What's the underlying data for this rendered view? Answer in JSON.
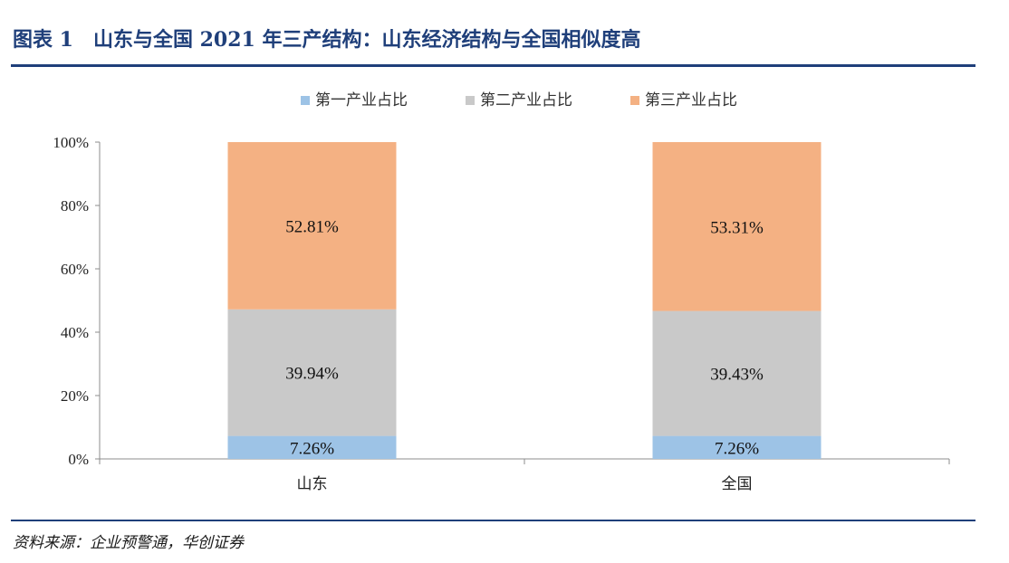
{
  "header": {
    "title": "图表 1　山东与全国 2021 年三产结构：山东经济结构与全国相似度高"
  },
  "footer": {
    "source": "资料来源：企业预警通，华创证券"
  },
  "chart_data": {
    "type": "bar",
    "stacked": true,
    "categories": [
      "山东",
      "全国"
    ],
    "series": [
      {
        "name": "第一产业占比",
        "values": [
          7.26,
          7.26
        ],
        "labels": [
          "7.26%",
          "7.26%"
        ],
        "color": "#9dc3e6"
      },
      {
        "name": "第二产业占比",
        "values": [
          39.94,
          39.43
        ],
        "labels": [
          "39.94%",
          "39.43%"
        ],
        "color": "#c9c9c9"
      },
      {
        "name": "第三产业占比",
        "values": [
          52.81,
          53.31
        ],
        "labels": [
          "52.81%",
          "53.31%"
        ],
        "color": "#f4b183"
      }
    ],
    "ylim": [
      0,
      100
    ],
    "yticks": [
      "0%",
      "20%",
      "40%",
      "60%",
      "80%",
      "100%"
    ],
    "ytick_values": [
      0,
      20,
      40,
      60,
      80,
      100
    ],
    "legend_position": "top-center",
    "grid": false
  }
}
